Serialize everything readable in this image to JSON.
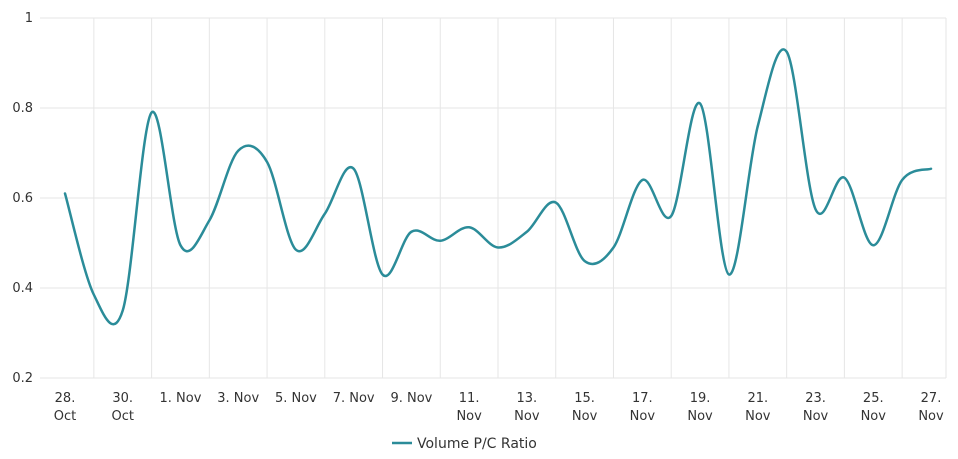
{
  "chart_data": {
    "type": "line",
    "title": "",
    "xlabel": "",
    "ylabel": "",
    "ylim": [
      0.2,
      1
    ],
    "y_ticks": [
      {
        "value": 0.2,
        "label": "0.2"
      },
      {
        "value": 0.4,
        "label": "0.4"
      },
      {
        "value": 0.6,
        "label": "0.6"
      },
      {
        "value": 0.8,
        "label": "0.8"
      },
      {
        "value": 1,
        "label": "1"
      }
    ],
    "x_ticks": [
      {
        "index": 0,
        "lines": [
          "28.",
          "Oct"
        ]
      },
      {
        "index": 2,
        "lines": [
          "30.",
          "Oct"
        ]
      },
      {
        "index": 4,
        "lines": [
          "1. Nov"
        ]
      },
      {
        "index": 6,
        "lines": [
          "3. Nov"
        ]
      },
      {
        "index": 8,
        "lines": [
          "5. Nov"
        ]
      },
      {
        "index": 10,
        "lines": [
          "7. Nov"
        ]
      },
      {
        "index": 12,
        "lines": [
          "9. Nov"
        ]
      },
      {
        "index": 14,
        "lines": [
          "11.",
          "Nov"
        ]
      },
      {
        "index": 16,
        "lines": [
          "13.",
          "Nov"
        ]
      },
      {
        "index": 18,
        "lines": [
          "15.",
          "Nov"
        ]
      },
      {
        "index": 20,
        "lines": [
          "17.",
          "Nov"
        ]
      },
      {
        "index": 22,
        "lines": [
          "19.",
          "Nov"
        ]
      },
      {
        "index": 24,
        "lines": [
          "21.",
          "Nov"
        ]
      },
      {
        "index": 26,
        "lines": [
          "23.",
          "Nov"
        ]
      },
      {
        "index": 28,
        "lines": [
          "25.",
          "Nov"
        ]
      },
      {
        "index": 30,
        "lines": [
          "27.",
          "Nov"
        ]
      }
    ],
    "grid": true,
    "legend_position": "bottom-center",
    "series": [
      {
        "name": "Volume P/C Ratio",
        "color": "#2b8c99",
        "points": [
          {
            "date": "2019-10-28",
            "y": 0.61
          },
          {
            "date": "2019-10-29",
            "y": 0.385
          },
          {
            "date": "2019-10-30",
            "y": 0.35
          },
          {
            "date": "2019-10-31",
            "y": 0.79
          },
          {
            "date": "2019-11-01",
            "y": 0.495
          },
          {
            "date": "2019-11-02",
            "y": 0.55
          },
          {
            "date": "2019-11-03",
            "y": 0.705
          },
          {
            "date": "2019-11-04",
            "y": 0.68
          },
          {
            "date": "2019-11-05",
            "y": 0.485
          },
          {
            "date": "2019-11-06",
            "y": 0.565
          },
          {
            "date": "2019-11-07",
            "y": 0.665
          },
          {
            "date": "2019-11-08",
            "y": 0.43
          },
          {
            "date": "2019-11-09",
            "y": 0.525
          },
          {
            "date": "2019-11-10",
            "y": 0.505
          },
          {
            "date": "2019-11-11",
            "y": 0.535
          },
          {
            "date": "2019-11-12",
            "y": 0.49
          },
          {
            "date": "2019-11-13",
            "y": 0.525
          },
          {
            "date": "2019-11-14",
            "y": 0.59
          },
          {
            "date": "2019-11-15",
            "y": 0.46
          },
          {
            "date": "2019-11-16",
            "y": 0.49
          },
          {
            "date": "2019-11-17",
            "y": 0.64
          },
          {
            "date": "2019-11-18",
            "y": 0.56
          },
          {
            "date": "2019-11-19",
            "y": 0.81
          },
          {
            "date": "2019-11-20",
            "y": 0.43
          },
          {
            "date": "2019-11-21",
            "y": 0.76
          },
          {
            "date": "2019-11-22",
            "y": 0.925
          },
          {
            "date": "2019-11-23",
            "y": 0.575
          },
          {
            "date": "2019-11-24",
            "y": 0.645
          },
          {
            "date": "2019-11-25",
            "y": 0.495
          },
          {
            "date": "2019-11-26",
            "y": 0.64
          },
          {
            "date": "2019-11-27",
            "y": 0.665
          }
        ]
      }
    ]
  }
}
